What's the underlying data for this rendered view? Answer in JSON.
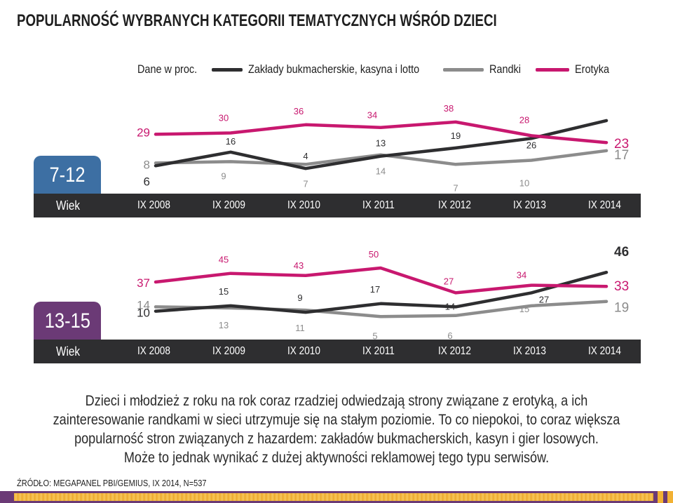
{
  "title": "POPULARNOŚĆ WYBRANYCH KATEGORII TEMATYCZNYCH WŚRÓD DZIECI",
  "legend": {
    "unit": "Dane w proc.",
    "items": [
      {
        "name": "Zakłady bukmacherskie, kasyna i lotto",
        "color": "#2e2e30"
      },
      {
        "name": "Randki",
        "color": "#8c8c8c"
      },
      {
        "name": "Erotyka",
        "color": "#c8186f"
      }
    ]
  },
  "colors": {
    "dark": "#2e2e30",
    "gray": "#8c8c8c",
    "pink": "#c8186f",
    "bar": "#2e2e30"
  },
  "description": [
    "Dzieci i młodzież z roku na rok coraz rzadziej odwiedzają strony związane z erotyką, a ich",
    "zainteresowanie randkami w sieci utrzymuje się na stałym poziomie. To co niepokoi, to coraz większa",
    "popularność stron związanych z hazardem: zakładów bukmacherskich, kasyn i gier losowych.",
    "Może to jednak wynikać z dużej aktywności reklamowej tego typu serwisów."
  ],
  "source": "ŹRÓDŁO: MEGAPANEL PBI/GEMIUS, IX 2014, N=537",
  "axis_label": "Wiek",
  "chart_data": [
    {
      "type": "line",
      "group": "7-12",
      "group_color": "#3d6fa3",
      "categories": [
        "IX 2008",
        "IX 2009",
        "IX 2010",
        "IX 2011",
        "IX 2012",
        "IX 2013",
        "IX 2014"
      ],
      "series": [
        {
          "name": "Zakłady bukmacherskie, kasyna i lotto",
          "values": [
            6,
            16,
            4,
            13,
            19,
            26,
            39
          ]
        },
        {
          "name": "Randki",
          "values": [
            8,
            9,
            7,
            14,
            7,
            10,
            17
          ]
        },
        {
          "name": "Erotyka",
          "values": [
            29,
            30,
            36,
            34,
            38,
            28,
            23
          ]
        }
      ]
    },
    {
      "type": "line",
      "group": "13-15",
      "group_color": "#6b3a76",
      "categories": [
        "IX 2008",
        "IX 2009",
        "IX 2010",
        "IX 2011",
        "IX 2012",
        "IX 2013",
        "IX 2014"
      ],
      "series": [
        {
          "name": "Zakłady bukmacherskie, kasyna i lotto",
          "values": [
            10,
            15,
            9,
            17,
            14,
            27,
            46
          ]
        },
        {
          "name": "Randki",
          "values": [
            14,
            13,
            11,
            5,
            6,
            15,
            19
          ]
        },
        {
          "name": "Erotyka",
          "values": [
            37,
            45,
            43,
            50,
            27,
            34,
            33
          ]
        }
      ]
    }
  ]
}
